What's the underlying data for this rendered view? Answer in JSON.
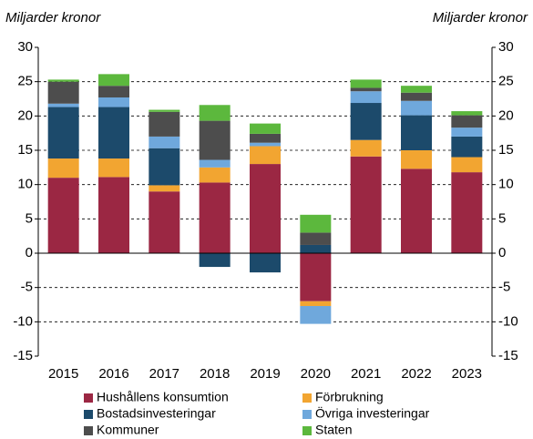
{
  "chart_data": {
    "type": "stacked_bar",
    "y_label": "Miljarder kronor",
    "y2_label": "Miljarder kronor",
    "categories": [
      "2015",
      "2016",
      "2017",
      "2018",
      "2019",
      "2020",
      "2021",
      "2022",
      "2023"
    ],
    "series": [
      {
        "name": "Hushållens konsumtion",
        "color": "#9b2743",
        "values": [
          11,
          11.1,
          9,
          10.3,
          13,
          -7,
          14.1,
          12.3,
          11.8
        ]
      },
      {
        "name": "Förbrukning",
        "color": "#f2a531",
        "values": [
          2.8,
          2.7,
          0.9,
          2.2,
          2.6,
          -0.7,
          2.4,
          2.7,
          2.2
        ]
      },
      {
        "name": "Bostadsinvesteringar",
        "color": "#1c4a6b",
        "values": [
          7.5,
          7.5,
          5.4,
          -2.0,
          -2.8,
          1.2,
          5.4,
          5.1,
          3
        ]
      },
      {
        "name": "Övriga investeringar",
        "color": "#6fa8dc",
        "values": [
          0.5,
          1.4,
          1.7,
          1.1,
          0.5,
          -2.6,
          1.7,
          2.1,
          1.3
        ]
      },
      {
        "name": "Kommuner",
        "color": "#4d4d4d",
        "values": [
          3.2,
          1.7,
          3.6,
          5.7,
          1.3,
          1.8,
          0.5,
          1.2,
          1.8
        ]
      },
      {
        "name": "Staten",
        "color": "#5cb83d",
        "values": [
          0.3,
          1.7,
          0.3,
          2.3,
          1.5,
          2.6,
          1.2,
          1.0,
          0.6
        ]
      }
    ],
    "ylim": [
      -15,
      30
    ],
    "yticks": [
      -15,
      -10,
      -5,
      0,
      5,
      10,
      15,
      20,
      25,
      30
    ],
    "y2lim": [
      -15,
      30
    ],
    "y2ticks": [
      -15,
      -10,
      -5,
      0,
      5,
      10,
      15,
      20,
      25,
      30
    ],
    "grid": true
  }
}
